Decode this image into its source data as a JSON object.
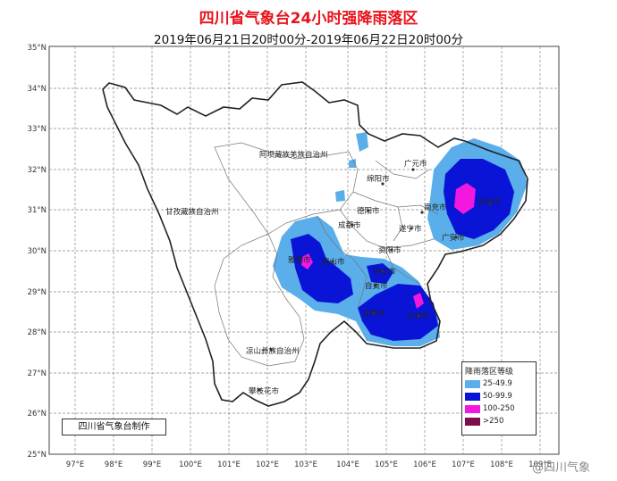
{
  "title": "四川省气象台24小时强降雨落区",
  "subtitle": "2019年06月21日20时00分-2019年06月22日20时00分",
  "lat_labels": [
    "35°N",
    "34°N",
    "33°N",
    "32°N",
    "31°N",
    "30°N",
    "29°N",
    "28°N",
    "27°N",
    "26°N",
    "25°N"
  ],
  "lon_labels": [
    "97°E",
    "98°E",
    "99°E",
    "100°E",
    "101°E",
    "102°E",
    "103°E",
    "104°E",
    "105°E",
    "106°E",
    "107°E",
    "108°E",
    "109°E"
  ],
  "places": {
    "aba": "阿坝藏族羌族自治州",
    "ganzi": "甘孜藏族自治州",
    "liangshan": "凉山彝族自治州",
    "panzhihua": "攀枝花市",
    "guangyuan": "广元市",
    "mianyang": "绵阳市",
    "deyang": "德阳市",
    "chengdu": "成都市",
    "nanchong": "南充市",
    "suining": "遂宁市",
    "dazhou": "达州市",
    "guangan": "广安市",
    "ziyang": "资阳市",
    "yaan": "雅安市",
    "meishan": "眉山市",
    "neijiang": "内江市",
    "zigong": "自贡市",
    "yibin": "宜宾市",
    "luzhou": "泸州市"
  },
  "legend": {
    "title": "降雨落区等级",
    "items": [
      {
        "label": "25-49.9",
        "color": "#5aaeea"
      },
      {
        "label": "50-99.9",
        "color": "#0a14d6"
      },
      {
        "label": "100-250",
        "color": "#f218e0"
      },
      {
        "label": ">250",
        "color": "#7b0f49"
      }
    ]
  },
  "credit": "四川省气象台制作",
  "watermark": "@四川气象"
}
